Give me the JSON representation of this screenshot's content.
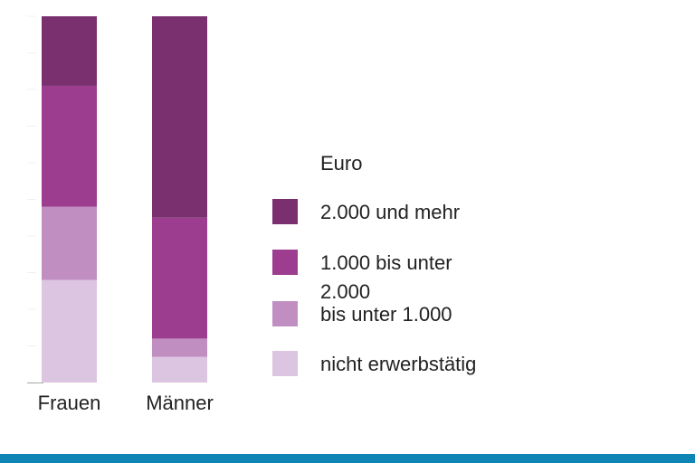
{
  "chart_data": {
    "type": "bar",
    "stacked": true,
    "percent": true,
    "categories": [
      "Frauen",
      "Männer"
    ],
    "series": [
      {
        "name": "nicht erwerbstätig",
        "color": "#dcc5e0",
        "values": [
          28,
          7
        ]
      },
      {
        "name": "bis unter 1.000",
        "color": "#c18ec2",
        "values": [
          20,
          5
        ]
      },
      {
        "name": "1.000 bis unter 2.000",
        "color": "#9c3d8f",
        "values": [
          33,
          33
        ]
      },
      {
        "name": "2.000 und mehr",
        "color": "#7a306f",
        "values": [
          19,
          55
        ]
      }
    ],
    "ylim": [
      0,
      100
    ],
    "grid": false,
    "legend_title": "Euro",
    "legend_position": "right"
  },
  "legend": {
    "title": "Euro",
    "items": [
      {
        "label": "2.000 und mehr",
        "color": "#7a306f"
      },
      {
        "label": "1.000 bis unter 2.000",
        "color": "#9c3d8f"
      },
      {
        "label": "bis unter 1.000",
        "color": "#c18ec2"
      },
      {
        "label": "nicht erwerbstätig",
        "color": "#dcc5e0"
      }
    ]
  },
  "colors": {
    "footer_bar": "#0f85b5",
    "axis": "#aaaaaa",
    "text": "#222222"
  }
}
